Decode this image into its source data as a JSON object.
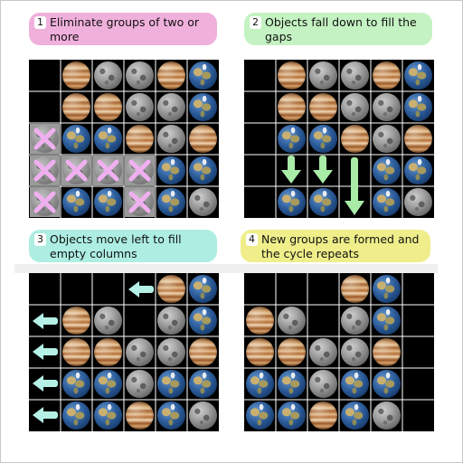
{
  "steps": [
    {
      "number": "1",
      "text": "Eliminate groups of two or more",
      "color": "#f0b0dc"
    },
    {
      "number": "2",
      "text": "Objects fall down to fill the gaps",
      "color": "#c4f2c2"
    },
    {
      "number": "3",
      "text": "Objects move left to fill empty columns",
      "color": "#aeeee2"
    },
    {
      "number": "4",
      "text": "New groups are formed and the cycle repeats",
      "color": "#f0ee8a"
    }
  ],
  "colors": {
    "x_mark": "#f0b0f0",
    "down_arrow": "#a8eca8",
    "left_arrow": "#b4f0e6",
    "marked_cell": "#9a9a9a",
    "board_bg": "#000000"
  },
  "boards": [
    {
      "name": "board-1",
      "rows": [
        [
          "",
          "J",
          "M",
          "M",
          "J",
          "E"
        ],
        [
          "",
          "J",
          "J",
          "M",
          "M",
          "E"
        ],
        [
          "M",
          "E",
          "E",
          "J",
          "M",
          "J"
        ],
        [
          "M",
          "M",
          "M",
          "M",
          "E",
          "E"
        ],
        [
          "M",
          "E",
          "E",
          "M",
          "E",
          "M"
        ]
      ],
      "marked": [
        [
          2,
          0
        ],
        [
          3,
          0
        ],
        [
          3,
          1
        ],
        [
          3,
          2
        ],
        [
          3,
          3
        ],
        [
          4,
          0
        ],
        [
          4,
          3
        ]
      ]
    },
    {
      "name": "board-2",
      "rows": [
        [
          "",
          "J",
          "M",
          "M",
          "J",
          "E"
        ],
        [
          "",
          "J",
          "J",
          "M",
          "M",
          "E"
        ],
        [
          "",
          "E",
          "E",
          "J",
          "M",
          "J"
        ],
        [
          "",
          "",
          "",
          "",
          "E",
          "E"
        ],
        [
          "",
          "E",
          "E",
          "",
          "E",
          "M"
        ]
      ],
      "marked": []
    },
    {
      "name": "board-3",
      "rows": [
        [
          "",
          "",
          "",
          "",
          "J",
          "E"
        ],
        [
          "",
          "J",
          "M",
          "",
          "M",
          "E"
        ],
        [
          "",
          "J",
          "J",
          "M",
          "M",
          "J"
        ],
        [
          "",
          "E",
          "E",
          "M",
          "E",
          "E"
        ],
        [
          "",
          "E",
          "E",
          "J",
          "E",
          "M"
        ]
      ],
      "marked": []
    },
    {
      "name": "board-4",
      "rows": [
        [
          "",
          "",
          "",
          "J",
          "E",
          ""
        ],
        [
          "J",
          "M",
          "",
          "M",
          "E",
          ""
        ],
        [
          "J",
          "J",
          "M",
          "M",
          "J",
          ""
        ],
        [
          "E",
          "E",
          "M",
          "E",
          "E",
          ""
        ],
        [
          "E",
          "E",
          "J",
          "E",
          "M",
          ""
        ]
      ],
      "marked": []
    }
  ],
  "object_types": {
    "J": "jupiter",
    "M": "moon",
    "E": "earth"
  }
}
